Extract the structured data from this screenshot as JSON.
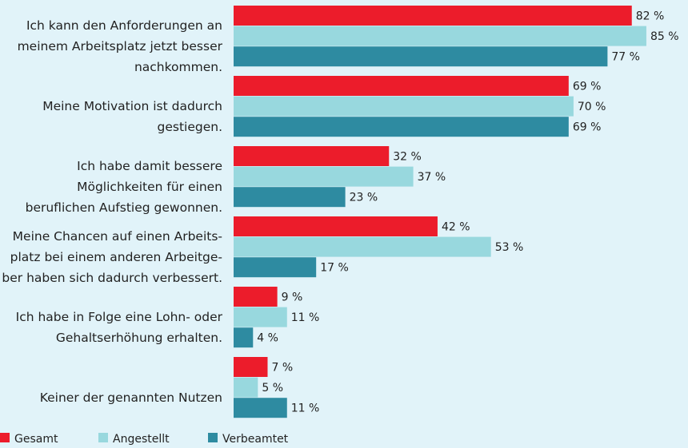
{
  "chart_data": {
    "type": "bar",
    "orientation": "horizontal",
    "categories": [
      "Ich kann den Anforderungen an\nmeinem Arbeitsplatz jetzt besser\nnachkommen.",
      "Meine Motivation ist dadurch\ngestiegen.",
      "Ich habe damit bessere\nMöglichkeiten für einen\nberuflichen Aufstieg gewonnen.",
      "Meine Chancen auf einen Arbeits-\nplatz bei einem anderen Arbeitge-\nber haben sich dadurch verbessert.",
      "Ich habe in Folge eine Lohn- oder\nGehaltserhöhung erhalten.",
      "Keiner der genannten Nutzen"
    ],
    "series": [
      {
        "name": "Gesamt",
        "color": "#ec1c2b",
        "values": [
          82,
          69,
          32,
          42,
          9,
          7
        ],
        "value_labels": [
          "82 %",
          "69 %",
          "32 %",
          "42 %",
          "9 %",
          "7 %"
        ]
      },
      {
        "name": "Angestellt",
        "color": "#98d8de",
        "values": [
          85,
          70,
          37,
          53,
          11,
          5
        ],
        "value_labels": [
          "85 %",
          "70 %",
          "37 %",
          "53 %",
          "11 %",
          "5 %"
        ]
      },
      {
        "name": "Verbeamtet",
        "color": "#2e8ba1",
        "values": [
          77,
          69,
          23,
          17,
          4,
          11
        ],
        "value_labels": [
          "77 %",
          "69 %",
          "23 %",
          "17 %",
          "4 %",
          "11 %"
        ]
      }
    ],
    "legend": "bottom-left"
  }
}
